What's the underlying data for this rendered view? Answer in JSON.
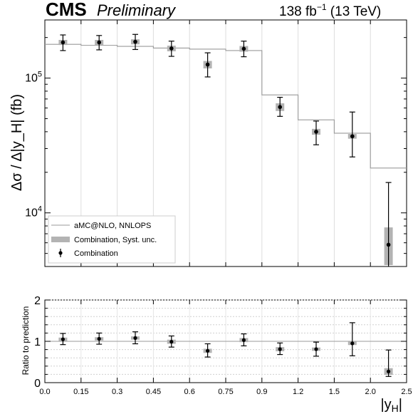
{
  "header": {
    "experiment": "CMS",
    "status": "Preliminary",
    "luminosity_prefix": "138 fb",
    "luminosity_exp": "−1",
    "luminosity_suffix": " (13 TeV)"
  },
  "chart_data": [
    {
      "type": "line",
      "panel": "main",
      "ylabel": "Δσ / Δ|y_H| (fb)",
      "yscale": "log",
      "ylim": [
        4000,
        270000
      ],
      "xlim": [
        0.0,
        2.5
      ],
      "bin_edges": [
        0.0,
        0.15,
        0.3,
        0.45,
        0.6,
        0.75,
        0.9,
        1.2,
        1.5,
        2.0,
        2.5
      ],
      "grid": "x",
      "legend_position": "bottom-left",
      "series": [
        {
          "name": "aMC@NLO, NNLOPS",
          "kind": "step",
          "color": "#9a9a9a",
          "values": [
            178000,
            175000,
            172000,
            167000,
            164000,
            160000,
            75000,
            49000,
            39000,
            21500
          ]
        },
        {
          "name": "Combination",
          "kind": "points-with-errors",
          "color": "#000000",
          "x": [
            0.075,
            0.225,
            0.375,
            0.525,
            0.675,
            0.825,
            1.05,
            1.35,
            1.75,
            2.25
          ],
          "values": [
            184000,
            184000,
            186000,
            166000,
            126000,
            165000,
            61000,
            40000,
            37000,
            5800
          ],
          "err_low": [
            24000,
            22000,
            23000,
            21000,
            24000,
            21000,
            9000,
            8000,
            11000,
            3000
          ],
          "err_high": [
            25000,
            23000,
            25000,
            22000,
            28000,
            23000,
            11000,
            8000,
            19000,
            11000
          ]
        },
        {
          "name": "Combination, Syst. unc.",
          "kind": "boxes",
          "color": "#b3b3b3",
          "x": [
            0.075,
            0.225,
            0.375,
            0.525,
            0.675,
            0.825,
            1.05,
            1.35,
            1.75,
            2.25
          ],
          "syst_low": [
            8000,
            8000,
            8000,
            8000,
            8000,
            8000,
            4000,
            2000,
            1500,
            1700
          ],
          "syst_high": [
            8000,
            8000,
            8000,
            8000,
            8000,
            8000,
            4000,
            2000,
            1500,
            2000
          ]
        }
      ],
      "tick_labels_y": [
        "10^5",
        "10^4"
      ]
    },
    {
      "type": "scatter",
      "panel": "ratio",
      "xlabel": "|y_H|",
      "ylabel": "Ratio to prediction",
      "ylim": [
        0,
        2
      ],
      "xlim": [
        0.0,
        2.5
      ],
      "xticks": [
        "0.0",
        "0.15",
        "0.3",
        "0.45",
        "0.6",
        "0.75",
        "0.9",
        "1.2",
        "1.5",
        "2.0",
        "2.5"
      ],
      "yticks": [
        "0",
        "1",
        "2"
      ],
      "reference_line": 1.0,
      "grid": "y",
      "series": [
        {
          "name": "Combination",
          "x": [
            0.075,
            0.225,
            0.375,
            0.525,
            0.675,
            0.825,
            1.05,
            1.35,
            1.75,
            2.25
          ],
          "values": [
            1.05,
            1.06,
            1.08,
            0.99,
            0.77,
            1.03,
            0.81,
            0.81,
            0.95,
            0.27
          ],
          "err_low": [
            0.13,
            0.13,
            0.14,
            0.13,
            0.15,
            0.14,
            0.13,
            0.17,
            0.3,
            0.12
          ],
          "err_high": [
            0.14,
            0.14,
            0.15,
            0.14,
            0.17,
            0.15,
            0.15,
            0.17,
            0.5,
            0.52
          ],
          "syst": [
            0.04,
            0.04,
            0.04,
            0.05,
            0.05,
            0.05,
            0.05,
            0.04,
            0.04,
            0.08
          ]
        }
      ]
    }
  ]
}
